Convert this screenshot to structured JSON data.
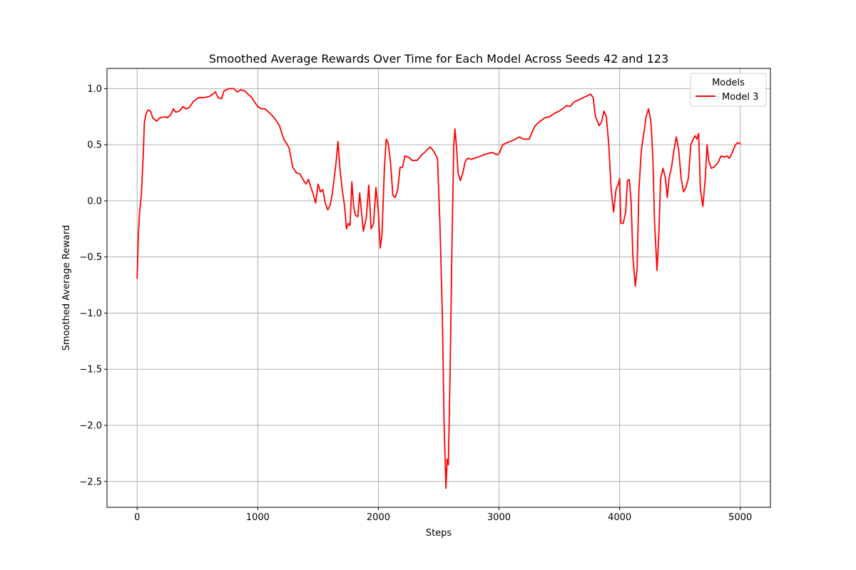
{
  "chart_data": {
    "type": "line",
    "title": "Smoothed Average Rewards Over Time for Each Model Across Seeds 42 and 123",
    "xlabel": "Steps",
    "ylabel": "Smoothed Average Reward",
    "xlim": [
      -250,
      5250
    ],
    "ylim": [
      -2.73,
      1.18
    ],
    "xticks": [
      0,
      1000,
      2000,
      3000,
      4000,
      5000
    ],
    "xtick_labels": [
      "0",
      "1000",
      "2000",
      "3000",
      "4000",
      "5000"
    ],
    "yticks": [
      1.0,
      0.5,
      0.0,
      -0.5,
      -1.0,
      -1.5,
      -2.0,
      -2.5
    ],
    "ytick_labels": [
      "1.0",
      "0.5",
      "0.0",
      "−0.5",
      "−1.0",
      "−1.5",
      "−2.0",
      "−2.5"
    ],
    "grid": true,
    "legend": {
      "title": "Models",
      "position": "top-right"
    },
    "series": [
      {
        "name": "Model 3",
        "color": "#ff0000",
        "points": [
          [
            0,
            -0.69
          ],
          [
            10,
            -0.3
          ],
          [
            20,
            -0.1
          ],
          [
            35,
            0.05
          ],
          [
            50,
            0.4
          ],
          [
            60,
            0.7
          ],
          [
            75,
            0.78
          ],
          [
            90,
            0.81
          ],
          [
            110,
            0.8
          ],
          [
            130,
            0.74
          ],
          [
            160,
            0.71
          ],
          [
            190,
            0.74
          ],
          [
            230,
            0.75
          ],
          [
            250,
            0.74
          ],
          [
            280,
            0.77
          ],
          [
            300,
            0.82
          ],
          [
            320,
            0.79
          ],
          [
            350,
            0.8
          ],
          [
            380,
            0.84
          ],
          [
            400,
            0.82
          ],
          [
            430,
            0.83
          ],
          [
            470,
            0.89
          ],
          [
            510,
            0.92
          ],
          [
            550,
            0.92
          ],
          [
            600,
            0.93
          ],
          [
            650,
            0.97
          ],
          [
            670,
            0.92
          ],
          [
            700,
            0.91
          ],
          [
            720,
            0.98
          ],
          [
            760,
            1.0
          ],
          [
            800,
            1.0
          ],
          [
            830,
            0.97
          ],
          [
            860,
            0.99
          ],
          [
            890,
            0.98
          ],
          [
            920,
            0.95
          ],
          [
            950,
            0.92
          ],
          [
            980,
            0.87
          ],
          [
            1000,
            0.84
          ],
          [
            1030,
            0.82
          ],
          [
            1060,
            0.82
          ],
          [
            1090,
            0.79
          ],
          [
            1120,
            0.76
          ],
          [
            1150,
            0.72
          ],
          [
            1180,
            0.67
          ],
          [
            1200,
            0.6
          ],
          [
            1220,
            0.54
          ],
          [
            1240,
            0.51
          ],
          [
            1260,
            0.47
          ],
          [
            1290,
            0.3
          ],
          [
            1320,
            0.25
          ],
          [
            1350,
            0.24
          ],
          [
            1380,
            0.18
          ],
          [
            1400,
            0.15
          ],
          [
            1420,
            0.19
          ],
          [
            1440,
            0.12
          ],
          [
            1460,
            0.06
          ],
          [
            1480,
            -0.02
          ],
          [
            1500,
            0.15
          ],
          [
            1520,
            0.08
          ],
          [
            1540,
            0.1
          ],
          [
            1560,
            -0.02
          ],
          [
            1580,
            -0.08
          ],
          [
            1600,
            -0.04
          ],
          [
            1620,
            0.08
          ],
          [
            1650,
            0.35
          ],
          [
            1665,
            0.53
          ],
          [
            1680,
            0.3
          ],
          [
            1700,
            0.1
          ],
          [
            1720,
            -0.05
          ],
          [
            1735,
            -0.25
          ],
          [
            1750,
            -0.2
          ],
          [
            1765,
            -0.22
          ],
          [
            1780,
            0.17
          ],
          [
            1795,
            -0.05
          ],
          [
            1810,
            -0.13
          ],
          [
            1830,
            -0.14
          ],
          [
            1845,
            0.07
          ],
          [
            1860,
            -0.1
          ],
          [
            1875,
            -0.27
          ],
          [
            1900,
            -0.15
          ],
          [
            1920,
            0.14
          ],
          [
            1940,
            -0.25
          ],
          [
            1960,
            -0.2
          ],
          [
            1980,
            0.12
          ],
          [
            2000,
            -0.1
          ],
          [
            2015,
            -0.42
          ],
          [
            2030,
            -0.3
          ],
          [
            2050,
            0.3
          ],
          [
            2065,
            0.55
          ],
          [
            2080,
            0.52
          ],
          [
            2100,
            0.35
          ],
          [
            2120,
            0.05
          ],
          [
            2140,
            0.03
          ],
          [
            2160,
            0.1
          ],
          [
            2180,
            0.3
          ],
          [
            2200,
            0.3
          ],
          [
            2220,
            0.4
          ],
          [
            2250,
            0.39
          ],
          [
            2280,
            0.36
          ],
          [
            2320,
            0.36
          ],
          [
            2360,
            0.41
          ],
          [
            2400,
            0.45
          ],
          [
            2430,
            0.48
          ],
          [
            2460,
            0.44
          ],
          [
            2490,
            0.38
          ],
          [
            2510,
            -0.2
          ],
          [
            2530,
            -1.0
          ],
          [
            2545,
            -2.0
          ],
          [
            2560,
            -2.56
          ],
          [
            2570,
            -2.3
          ],
          [
            2580,
            -2.35
          ],
          [
            2595,
            -1.5
          ],
          [
            2610,
            -0.4
          ],
          [
            2625,
            0.5
          ],
          [
            2635,
            0.64
          ],
          [
            2650,
            0.45
          ],
          [
            2660,
            0.25
          ],
          [
            2680,
            0.18
          ],
          [
            2700,
            0.25
          ],
          [
            2720,
            0.35
          ],
          [
            2740,
            0.38
          ],
          [
            2770,
            0.37
          ],
          [
            2800,
            0.38
          ],
          [
            2850,
            0.4
          ],
          [
            2900,
            0.42
          ],
          [
            2950,
            0.43
          ],
          [
            2980,
            0.41
          ],
          [
            3000,
            0.42
          ],
          [
            3030,
            0.5
          ],
          [
            3070,
            0.52
          ],
          [
            3120,
            0.54
          ],
          [
            3170,
            0.57
          ],
          [
            3200,
            0.55
          ],
          [
            3250,
            0.55
          ],
          [
            3270,
            0.6
          ],
          [
            3300,
            0.67
          ],
          [
            3330,
            0.7
          ],
          [
            3380,
            0.74
          ],
          [
            3420,
            0.75
          ],
          [
            3460,
            0.78
          ],
          [
            3500,
            0.8
          ],
          [
            3540,
            0.83
          ],
          [
            3560,
            0.85
          ],
          [
            3590,
            0.84
          ],
          [
            3620,
            0.88
          ],
          [
            3680,
            0.91
          ],
          [
            3720,
            0.93
          ],
          [
            3760,
            0.95
          ],
          [
            3780,
            0.92
          ],
          [
            3800,
            0.75
          ],
          [
            3830,
            0.67
          ],
          [
            3850,
            0.7
          ],
          [
            3870,
            0.8
          ],
          [
            3890,
            0.75
          ],
          [
            3910,
            0.5
          ],
          [
            3930,
            0.1
          ],
          [
            3950,
            -0.1
          ],
          [
            3970,
            0.1
          ],
          [
            3990,
            0.15
          ],
          [
            4000,
            0.2
          ],
          [
            4010,
            -0.2
          ],
          [
            4030,
            -0.2
          ],
          [
            4050,
            -0.1
          ],
          [
            4065,
            0.18
          ],
          [
            4080,
            0.19
          ],
          [
            4095,
            0.0
          ],
          [
            4110,
            -0.5
          ],
          [
            4130,
            -0.76
          ],
          [
            4145,
            -0.6
          ],
          [
            4160,
            0.1
          ],
          [
            4180,
            0.45
          ],
          [
            4200,
            0.6
          ],
          [
            4220,
            0.75
          ],
          [
            4240,
            0.82
          ],
          [
            4260,
            0.7
          ],
          [
            4275,
            0.4
          ],
          [
            4290,
            -0.2
          ],
          [
            4310,
            -0.62
          ],
          [
            4325,
            -0.3
          ],
          [
            4340,
            0.2
          ],
          [
            4360,
            0.29
          ],
          [
            4380,
            0.2
          ],
          [
            4395,
            0.03
          ],
          [
            4410,
            0.2
          ],
          [
            4430,
            0.3
          ],
          [
            4450,
            0.45
          ],
          [
            4470,
            0.57
          ],
          [
            4490,
            0.45
          ],
          [
            4510,
            0.2
          ],
          [
            4530,
            0.08
          ],
          [
            4550,
            0.12
          ],
          [
            4570,
            0.2
          ],
          [
            4590,
            0.5
          ],
          [
            4610,
            0.55
          ],
          [
            4625,
            0.58
          ],
          [
            4640,
            0.55
          ],
          [
            4655,
            0.6
          ],
          [
            4670,
            0.1
          ],
          [
            4690,
            -0.05
          ],
          [
            4710,
            0.2
          ],
          [
            4725,
            0.5
          ],
          [
            4740,
            0.35
          ],
          [
            4760,
            0.29
          ],
          [
            4780,
            0.3
          ],
          [
            4800,
            0.32
          ],
          [
            4820,
            0.35
          ],
          [
            4840,
            0.4
          ],
          [
            4870,
            0.39
          ],
          [
            4890,
            0.4
          ],
          [
            4910,
            0.38
          ],
          [
            4930,
            0.42
          ],
          [
            4960,
            0.5
          ],
          [
            4980,
            0.52
          ],
          [
            5000,
            0.51
          ]
        ]
      }
    ]
  }
}
